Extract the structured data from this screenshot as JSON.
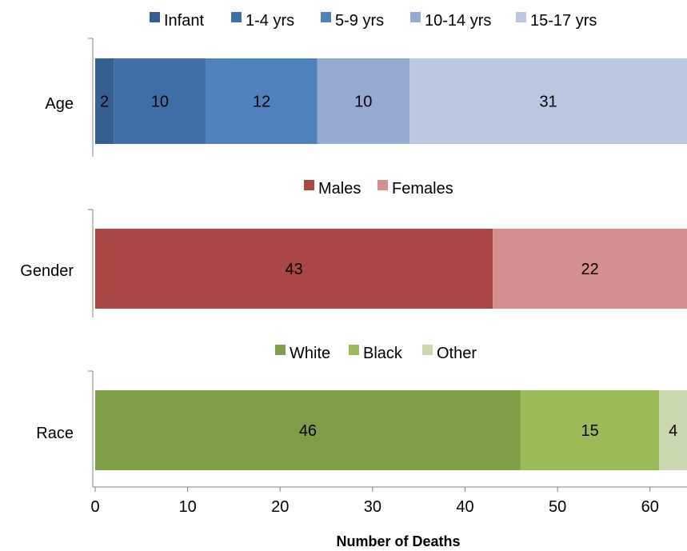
{
  "chart_data": {
    "type": "bar",
    "orientation": "horizontal",
    "stacked": true,
    "xlabel": "Number of Deaths",
    "xlim": [
      0,
      64
    ],
    "xticks": [
      0,
      10,
      20,
      30,
      40,
      50,
      60
    ],
    "grid": false,
    "panels": [
      {
        "category": "Age",
        "legend_position": "top",
        "series": [
          {
            "name": "Infant",
            "value": 2,
            "color": "#355f91"
          },
          {
            "name": "1-4 yrs",
            "value": 10,
            "color": "#3f6fa6"
          },
          {
            "name": "5-9 yrs",
            "value": 12,
            "color": "#4f81bd"
          },
          {
            "name": "10-14 yrs",
            "value": 10,
            "color": "#95abd2"
          },
          {
            "name": "15-17 yrs",
            "value": 31,
            "color": "#bac8e0"
          }
        ]
      },
      {
        "category": "Gender",
        "legend_position": "top",
        "series": [
          {
            "name": "Males",
            "value": 43,
            "color": "#ab4744"
          },
          {
            "name": "Females",
            "value": 22,
            "color": "#d4908f"
          }
        ]
      },
      {
        "category": "Race",
        "legend_position": "top",
        "series": [
          {
            "name": "White",
            "value": 46,
            "color": "#7f9e48"
          },
          {
            "name": "Black",
            "value": 15,
            "color": "#9bbb59"
          },
          {
            "name": "Other",
            "value": 4,
            "color": "#c9d9ad"
          }
        ]
      }
    ]
  }
}
